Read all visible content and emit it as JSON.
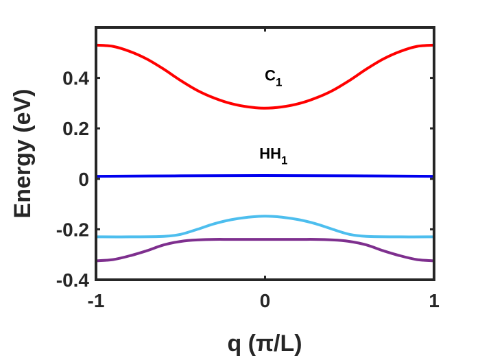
{
  "chart_data": {
    "type": "line",
    "xlabel": "q (π/L)",
    "ylabel": "Energy (eV)",
    "xlim": [
      -1,
      1
    ],
    "ylim": [
      -0.4,
      0.6
    ],
    "xticks": [
      -1,
      0,
      1
    ],
    "xtick_labels": [
      "-1",
      "0",
      "1"
    ],
    "yticks": [
      -0.4,
      -0.2,
      0,
      0.2,
      0.4
    ],
    "ytick_labels": [
      "-0.4",
      "-0.2",
      "0",
      "0.2",
      "0.4"
    ],
    "grid": false,
    "annotations": [
      {
        "main": "C",
        "sub": "1",
        "x": 0.05,
        "y": 0.39
      },
      {
        "main": "HH",
        "sub": "1",
        "x": 0.05,
        "y": 0.08
      }
    ],
    "series": [
      {
        "color": "#ff0000",
        "x": [
          -1,
          -0.9,
          -0.8,
          -0.7,
          -0.6,
          -0.5,
          -0.4,
          -0.3,
          -0.2,
          -0.1,
          0,
          0.1,
          0.2,
          0.3,
          0.4,
          0.5,
          0.6,
          0.7,
          0.8,
          0.9,
          1
        ],
        "y": [
          0.53,
          0.525,
          0.505,
          0.475,
          0.435,
          0.39,
          0.35,
          0.32,
          0.298,
          0.285,
          0.28,
          0.285,
          0.298,
          0.32,
          0.35,
          0.39,
          0.435,
          0.475,
          0.505,
          0.525,
          0.53
        ]
      },
      {
        "color": "#0000ee",
        "x": [
          -1,
          -0.5,
          0,
          0.5,
          1
        ],
        "y": [
          0.01,
          0.012,
          0.013,
          0.012,
          0.01
        ]
      },
      {
        "color": "#4dbeee",
        "x": [
          -1,
          -0.8,
          -0.6,
          -0.5,
          -0.4,
          -0.3,
          -0.2,
          -0.1,
          0,
          0.1,
          0.2,
          0.3,
          0.4,
          0.5,
          0.6,
          0.8,
          1
        ],
        "y": [
          -0.23,
          -0.23,
          -0.228,
          -0.22,
          -0.2,
          -0.178,
          -0.162,
          -0.152,
          -0.148,
          -0.152,
          -0.162,
          -0.178,
          -0.2,
          -0.22,
          -0.228,
          -0.23,
          -0.23
        ]
      },
      {
        "color": "#7e2f8e",
        "x": [
          -1,
          -0.9,
          -0.8,
          -0.7,
          -0.6,
          -0.5,
          -0.4,
          -0.3,
          -0.2,
          0,
          0.2,
          0.3,
          0.4,
          0.5,
          0.6,
          0.7,
          0.8,
          0.9,
          1
        ],
        "y": [
          -0.325,
          -0.32,
          -0.305,
          -0.285,
          -0.262,
          -0.248,
          -0.242,
          -0.24,
          -0.24,
          -0.24,
          -0.24,
          -0.24,
          -0.242,
          -0.248,
          -0.262,
          -0.285,
          -0.305,
          -0.32,
          -0.325
        ]
      }
    ]
  }
}
